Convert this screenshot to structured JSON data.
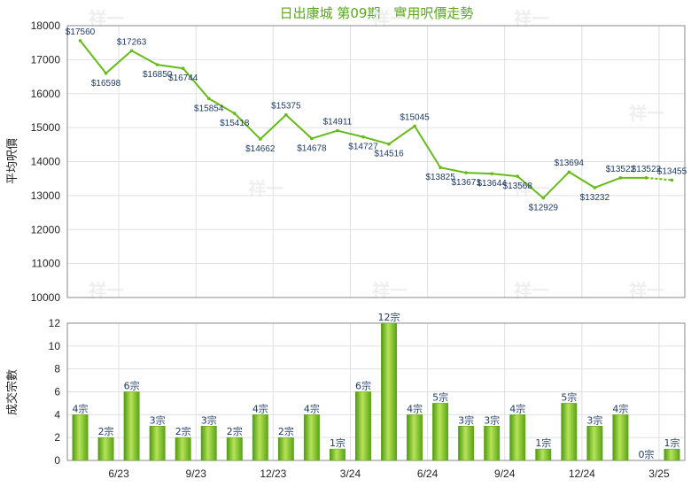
{
  "chart_data": [
    {
      "type": "line",
      "title": "日出康城 第09期 - 實用呎價走勢",
      "ylabel": "平均呎價",
      "ylim": [
        10000,
        18000
      ],
      "yticks": [
        10000,
        11000,
        12000,
        13000,
        14000,
        15000,
        16000,
        17000,
        18000
      ],
      "xtick_labels": [
        "6/23",
        "9/23",
        "12/23",
        "3/24",
        "6/24",
        "9/24",
        "12/24",
        "3/25"
      ],
      "xtick_positions": [
        2,
        5,
        8,
        11,
        14,
        17,
        20,
        23
      ],
      "grid": true,
      "series": [
        {
          "color": "#66bb1a",
          "values": [
            17560,
            16598,
            17263,
            16850,
            16744,
            15854,
            15418,
            14662,
            15375,
            14678,
            14911,
            14727,
            14516,
            15045,
            13825,
            13671,
            13644,
            13568,
            12929,
            13694,
            13232,
            13522,
            13522,
            13455
          ],
          "labels": [
            "$17560",
            "$16598",
            "$17263",
            "$16850",
            "$16744",
            "$15854",
            "$15418",
            "$14662",
            "$15375",
            "$14678",
            "$14911",
            "$14727",
            "$14516",
            "$15045",
            "$13825",
            "$13671",
            "$13644",
            "$13568",
            "$12929",
            "$13694",
            "$13232",
            "$13522",
            "$13522",
            "$13455"
          ],
          "dashed_index": 22
        }
      ]
    },
    {
      "type": "bar",
      "ylabel": "成交宗數",
      "ylim": [
        0,
        12
      ],
      "yticks": [
        0,
        2,
        4,
        6,
        8,
        10,
        12
      ],
      "grid": true,
      "series": [
        {
          "color": "#7cc82a",
          "values": [
            4,
            2,
            6,
            3,
            2,
            3,
            2,
            4,
            2,
            4,
            1,
            6,
            12,
            4,
            5,
            3,
            3,
            4,
            1,
            5,
            3,
            4,
            0,
            1
          ],
          "labels": [
            "4宗",
            "2宗",
            "6宗",
            "3宗",
            "2宗",
            "3宗",
            "2宗",
            "4宗",
            "2宗",
            "4宗",
            "1宗",
            "6宗",
            "12宗",
            "4宗",
            "5宗",
            "3宗",
            "3宗",
            "4宗",
            "1宗",
            "5宗",
            "3宗",
            "4宗",
            "0宗",
            "1宗"
          ]
        }
      ]
    }
  ],
  "watermark": "祥一"
}
